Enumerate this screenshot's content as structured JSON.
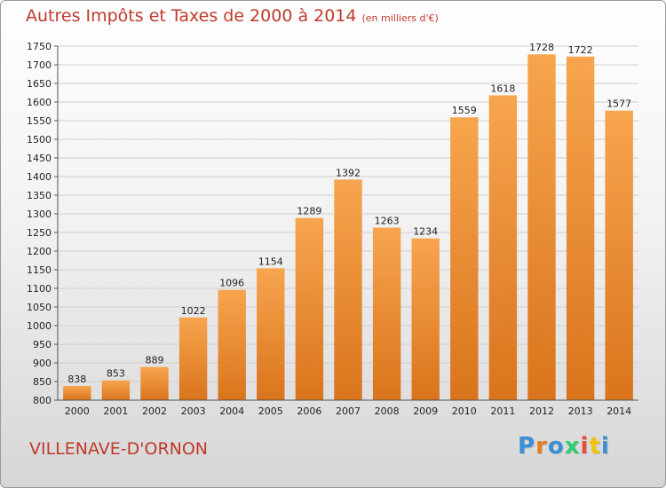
{
  "header": {
    "title": "Autres Impôts et Taxes de 2000 à 2014",
    "unit": "(en milliers d'€)"
  },
  "footer": {
    "city": "VILLENAVE-D'ORNON",
    "logo": "Proxiti"
  },
  "colors": {
    "bar_light": "#f7a54e",
    "bar_dark": "#d9741c",
    "title": "#c0392b"
  },
  "chart_data": {
    "type": "bar",
    "title": "Autres Impôts et Taxes de 2000 à 2014",
    "subtitle": "(en milliers d'€)",
    "xlabel": "",
    "ylabel": "",
    "categories": [
      "2000",
      "2001",
      "2002",
      "2003",
      "2004",
      "2005",
      "2006",
      "2007",
      "2008",
      "2009",
      "2010",
      "2011",
      "2012",
      "2013",
      "2014"
    ],
    "values": [
      838,
      853,
      889,
      1022,
      1096,
      1154,
      1289,
      1392,
      1263,
      1234,
      1559,
      1618,
      1728,
      1722,
      1577
    ],
    "ylim": [
      800,
      1750
    ],
    "yticks": [
      800,
      850,
      900,
      950,
      1000,
      1050,
      1100,
      1150,
      1200,
      1250,
      1300,
      1350,
      1400,
      1450,
      1500,
      1550,
      1600,
      1650,
      1700,
      1750
    ],
    "grid": true,
    "data_labels": true
  }
}
